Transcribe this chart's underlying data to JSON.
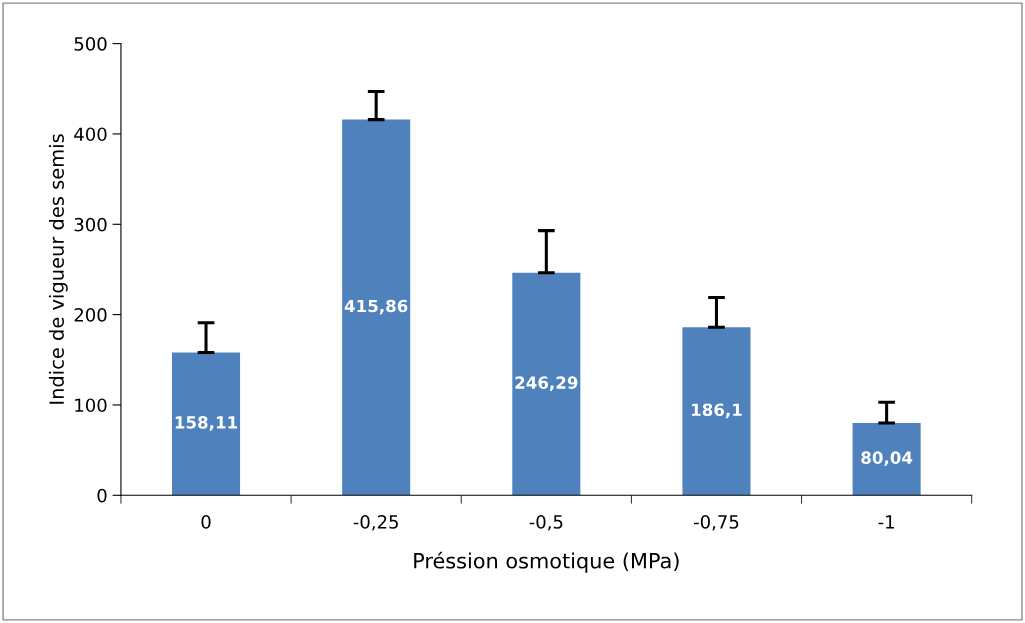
{
  "chart_data": {
    "type": "bar",
    "xlabel": "Préssion osmotique (MPa)",
    "ylabel": "Indice de vigueur des semis",
    "categories": [
      "0",
      "-0,25",
      "-0,5",
      "-0,75",
      "-1"
    ],
    "values": [
      158.11,
      415.86,
      246.29,
      186.1,
      80.04
    ],
    "value_labels": [
      "158,11",
      "415,86",
      "246,29",
      "186,1",
      "80,04"
    ],
    "errors": [
      [
        158.11,
        191
      ],
      [
        415.86,
        447
      ],
      [
        246.29,
        293
      ],
      [
        186.1,
        219
      ],
      [
        80.04,
        103
      ]
    ],
    "color": "#4f81bd",
    "ylim": [
      0,
      500
    ],
    "yticks": [
      0,
      100,
      200,
      300,
      400,
      500
    ],
    "grid": false,
    "legend": false
  }
}
